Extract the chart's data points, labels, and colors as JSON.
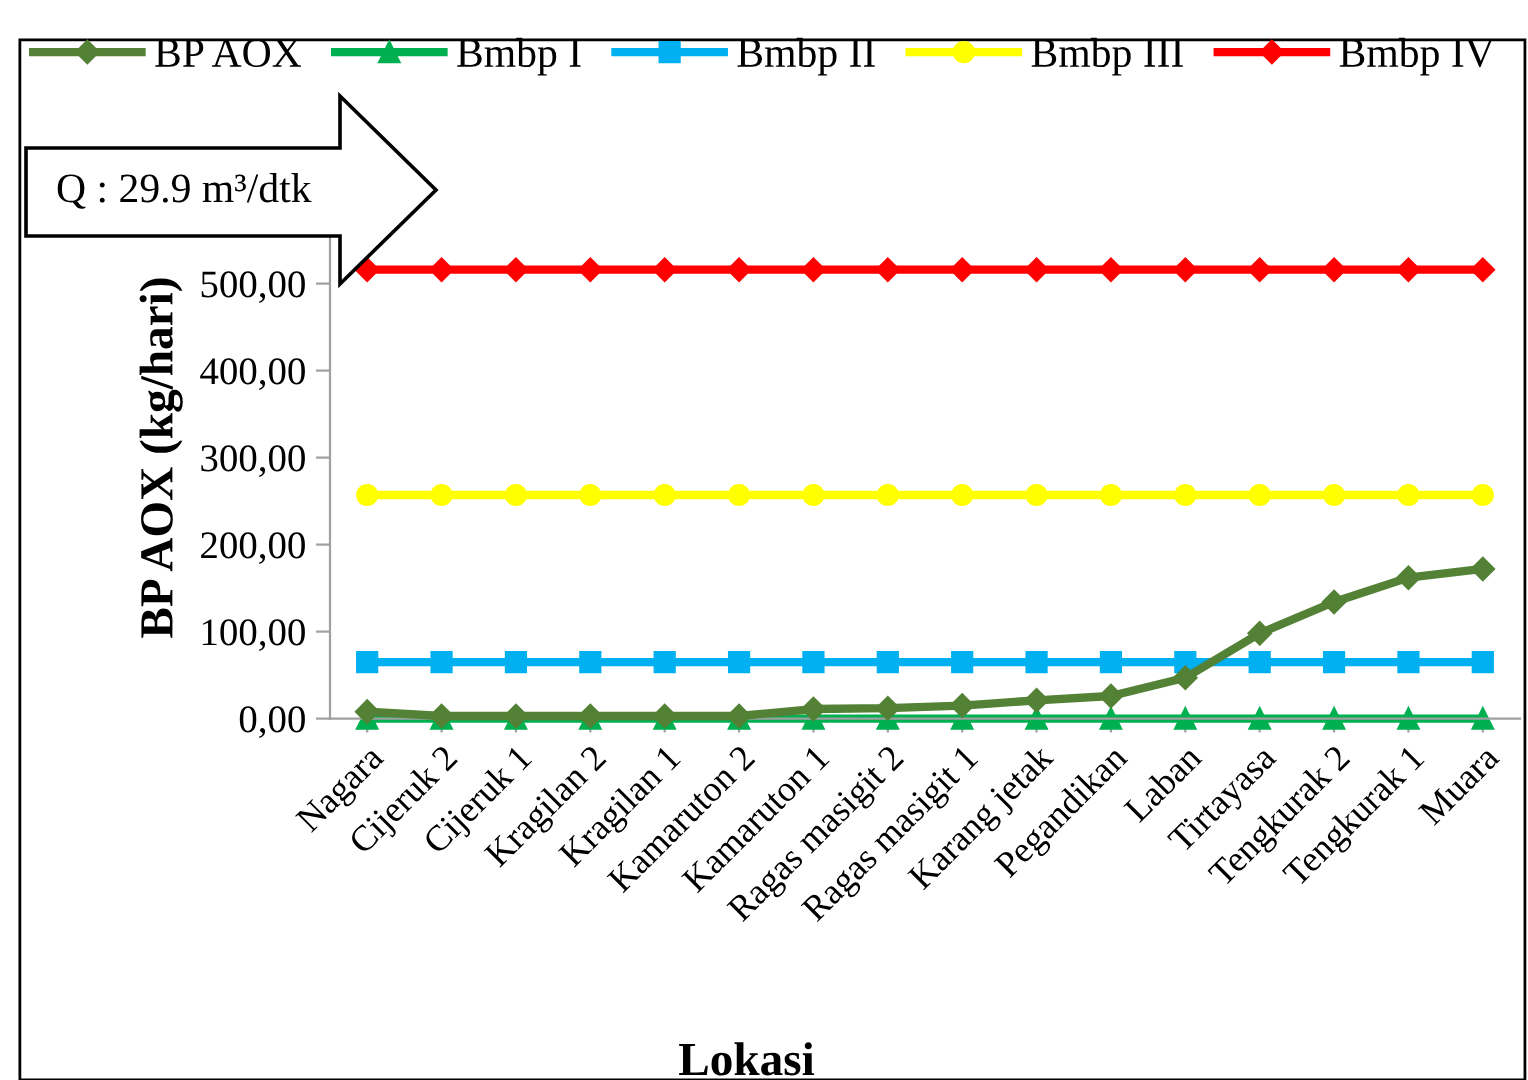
{
  "chart_data": {
    "type": "line",
    "xlabel": "Lokasi",
    "ylabel": "BP AOX (kg/hari)",
    "categories": [
      "Nagara",
      "Cijeruk 2",
      "Cijeruk 1",
      "Kragilan 2",
      "Kragilan 1",
      "Kamaruton 2",
      "Kamaruton 1",
      "Ragas masigit 2",
      "Ragas masigit 1",
      "Karang jetak",
      "Pegandikan",
      "Laban",
      "Tirtayasa",
      "Tengkurak 2",
      "Tengkurak 1",
      "Muara"
    ],
    "series": [
      {
        "name": "BP AOX",
        "color": "#538135",
        "marker": "diamond",
        "values": [
          8,
          3,
          3,
          3,
          3,
          3,
          11,
          12,
          15,
          21,
          26,
          47,
          98,
          134,
          162,
          172
        ]
      },
      {
        "name": "Bmbp I",
        "color": "#00b050",
        "marker": "triangle",
        "values": [
          0,
          0,
          0,
          0,
          0,
          0,
          0,
          0,
          0,
          0,
          0,
          0,
          0,
          0,
          0,
          0
        ]
      },
      {
        "name": "Bmbp II",
        "color": "#00b0f0",
        "marker": "square",
        "values": [
          65,
          65,
          65,
          65,
          65,
          65,
          65,
          65,
          65,
          65,
          65,
          65,
          65,
          65,
          65,
          65
        ]
      },
      {
        "name": "Bmbp III",
        "color": "#ffff00",
        "marker": "circle",
        "values": [
          257,
          257,
          257,
          257,
          257,
          257,
          257,
          257,
          257,
          257,
          257,
          257,
          257,
          257,
          257,
          257
        ]
      },
      {
        "name": "Bmbp IV",
        "color": "#ff0000",
        "marker": "diamond",
        "values": [
          516,
          516,
          516,
          516,
          516,
          516,
          516,
          516,
          516,
          516,
          516,
          516,
          516,
          516,
          516,
          516
        ]
      }
    ],
    "ylim": [
      0,
      600
    ],
    "yticks": [
      {
        "value": 0,
        "label": "0,00"
      },
      {
        "value": 100,
        "label": "100,00"
      },
      {
        "value": 200,
        "label": "200,00"
      },
      {
        "value": 300,
        "label": "300,00"
      },
      {
        "value": 400,
        "label": "400,00"
      },
      {
        "value": 500,
        "label": "500,00"
      }
    ],
    "grid": false,
    "legend": "top",
    "line_style": "solid",
    "annotations": [
      "Q : 29.9 m³/dtk"
    ]
  }
}
